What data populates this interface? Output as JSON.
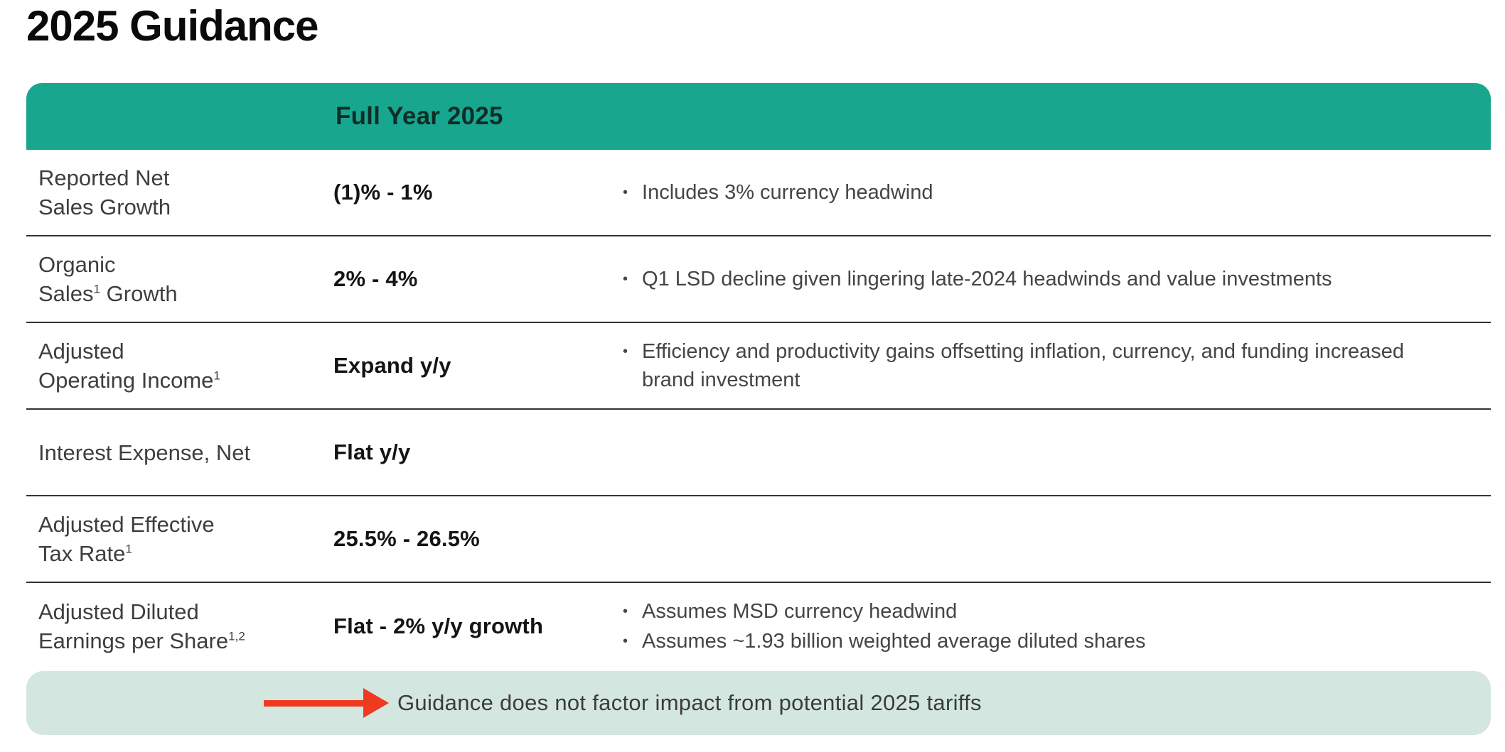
{
  "title": "2025 Guidance",
  "table": {
    "column_header": "Full Year 2025",
    "rows": [
      {
        "label": [
          [
            {
              "t": "Reported Net"
            }
          ],
          [
            {
              "t": "Sales Growth"
            }
          ]
        ],
        "value": "(1)% - 1%",
        "bullets": [
          "Includes 3% currency headwind"
        ]
      },
      {
        "label": [
          [
            {
              "t": "Organic"
            }
          ],
          [
            {
              "t": "Sales"
            },
            {
              "sup": "1"
            },
            {
              "t": " Growth"
            }
          ]
        ],
        "value": "2% - 4%",
        "bullets": [
          "Q1 LSD decline given lingering late-2024 headwinds and value investments"
        ]
      },
      {
        "label": [
          [
            {
              "t": "Adjusted"
            }
          ],
          [
            {
              "t": "Operating Income"
            },
            {
              "sup": "1"
            }
          ]
        ],
        "value": "Expand y/y",
        "bullets": [
          "Efficiency and productivity gains offsetting inflation, currency, and funding increased brand investment"
        ]
      },
      {
        "label": [
          [
            {
              "t": "Interest Expense, Net"
            }
          ]
        ],
        "value": "Flat y/y",
        "bullets": []
      },
      {
        "label": [
          [
            {
              "t": "Adjusted Effective"
            }
          ],
          [
            {
              "t": "Tax Rate"
            },
            {
              "sup": "1"
            }
          ]
        ],
        "value": "25.5% - 26.5%",
        "bullets": []
      },
      {
        "label": [
          [
            {
              "t": "Adjusted Diluted"
            }
          ],
          [
            {
              "t": "Earnings per Share"
            },
            {
              "sup": "1,2"
            }
          ]
        ],
        "value": "Flat - 2% y/y growth",
        "bullets": [
          "Assumes MSD currency headwind",
          "Assumes ~1.93 billion weighted average diluted shares"
        ]
      }
    ]
  },
  "footer": {
    "note": "Guidance does not factor impact from potential 2025 tariffs"
  },
  "icons": {
    "bullet_glyph": "•",
    "red_arrow": "right-arrow"
  },
  "colors": {
    "header_bg": "#18A78E",
    "header_text": "#0E2D28",
    "footer_bg": "#D3E7E0",
    "arrow_red": "#EE3A1F",
    "separator": "#333333",
    "title_text": "#0A0A0A",
    "label_text": "#3E3E3E",
    "value_text": "#141414",
    "bullet_text": "#454545"
  }
}
